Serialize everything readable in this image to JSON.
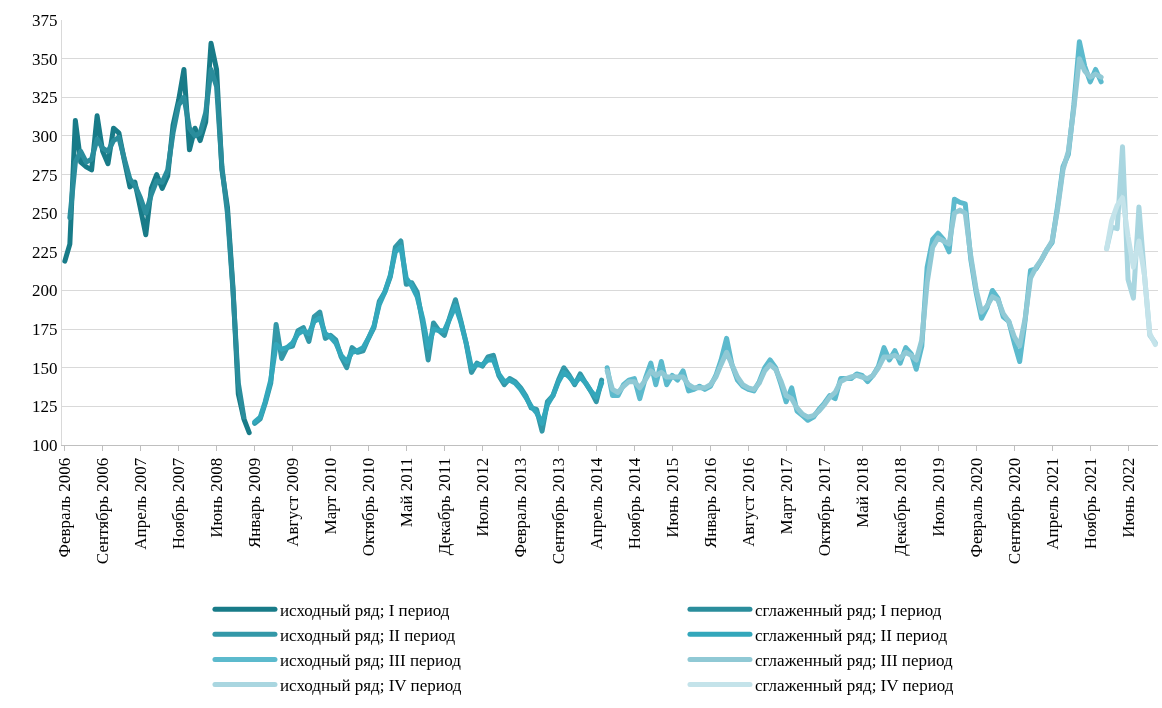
{
  "chart_data": {
    "type": "line",
    "xlim": [
      "2006-01-16",
      "2022-11-16"
    ],
    "ylim": [
      100,
      375
    ],
    "yticks": [
      100,
      125,
      150,
      175,
      200,
      225,
      250,
      275,
      300,
      325,
      350,
      375
    ],
    "xticks": [
      {
        "value": "2006-02",
        "label": "Февраль 2006"
      },
      {
        "value": "2006-09",
        "label": "Сентябрь 2006"
      },
      {
        "value": "2007-04",
        "label": "Апрель 2007"
      },
      {
        "value": "2007-11",
        "label": "Ноябрь 2007"
      },
      {
        "value": "2008-06",
        "label": "Июнь 2008"
      },
      {
        "value": "2009-01",
        "label": "Январь 2009"
      },
      {
        "value": "2009-08",
        "label": "Август 2009"
      },
      {
        "value": "2010-03",
        "label": "Март 2010"
      },
      {
        "value": "2010-10",
        "label": "Октябрь 2010"
      },
      {
        "value": "2011-05",
        "label": "Май 2011"
      },
      {
        "value": "2011-12",
        "label": "Декабрь 2011"
      },
      {
        "value": "2012-07",
        "label": "Июль 2012"
      },
      {
        "value": "2013-02",
        "label": "Февраль 2013"
      },
      {
        "value": "2013-09",
        "label": "Сентябрь 2013"
      },
      {
        "value": "2014-04",
        "label": "Апрель 2014"
      },
      {
        "value": "2014-11",
        "label": "Ноябрь 2014"
      },
      {
        "value": "2015-06",
        "label": "Июнь 2015"
      },
      {
        "value": "2016-01",
        "label": "Январь 2016"
      },
      {
        "value": "2016-08",
        "label": "Август 2016"
      },
      {
        "value": "2017-03",
        "label": "Март 2017"
      },
      {
        "value": "2017-10",
        "label": "Октябрь 2017"
      },
      {
        "value": "2018-05",
        "label": "Май 2018"
      },
      {
        "value": "2018-12",
        "label": "Декабрь 2018"
      },
      {
        "value": "2019-07",
        "label": "Июль 2019"
      },
      {
        "value": "2020-02",
        "label": "Февраль 2020"
      },
      {
        "value": "2020-09",
        "label": "Сентябрь 2020"
      },
      {
        "value": "2021-04",
        "label": "Апрель 2021"
      },
      {
        "value": "2021-11",
        "label": "Ноябрь 2021"
      },
      {
        "value": "2022-06",
        "label": "Июнь 2022"
      }
    ],
    "grid": "y",
    "legend": "bottom",
    "marker": "none",
    "line_style": "solid",
    "series": [
      {
        "name": "исходный ряд; I период",
        "color": "#187b88",
        "x": [
          "2006-02",
          "2006-03",
          "2006-04",
          "2006-05",
          "2006-06",
          "2006-07",
          "2006-08",
          "2006-09",
          "2006-10",
          "2006-11",
          "2006-12",
          "2007-01",
          "2007-02",
          "2007-03",
          "2007-04",
          "2007-05",
          "2007-06",
          "2007-07",
          "2007-08",
          "2007-09",
          "2007-10",
          "2007-11",
          "2007-12",
          "2008-01",
          "2008-02",
          "2008-03",
          "2008-04",
          "2008-05",
          "2008-06",
          "2008-07",
          "2008-08",
          "2008-09",
          "2008-10",
          "2008-11",
          "2008-12"
        ],
        "values": [
          219,
          230,
          310,
          283,
          280,
          278,
          313,
          290,
          282,
          305,
          302,
          284,
          267,
          270,
          253,
          236,
          266,
          275,
          266,
          274,
          307,
          323,
          343,
          291,
          305,
          297,
          309,
          360,
          343,
          278,
          254,
          202,
          133,
          117,
          108
        ]
      },
      {
        "name": "сглаженный ряд; I период",
        "color": "#2a8d9c",
        "x": [
          "2006-03",
          "2006-04",
          "2006-05",
          "2006-06",
          "2006-07",
          "2006-08",
          "2006-09",
          "2006-10",
          "2006-11",
          "2006-12",
          "2007-01",
          "2007-02",
          "2007-03",
          "2007-04",
          "2007-05",
          "2007-06",
          "2007-07",
          "2007-08",
          "2007-09",
          "2007-10",
          "2007-11",
          "2007-12",
          "2008-01",
          "2008-02",
          "2008-03",
          "2008-04",
          "2008-05",
          "2008-06",
          "2008-07",
          "2008-08",
          "2008-09",
          "2008-10",
          "2008-11"
        ],
        "values": [
          247,
          283,
          290,
          283,
          285,
          298,
          292,
          290,
          297,
          299,
          285,
          272,
          268,
          260,
          250,
          262,
          271,
          270,
          278,
          302,
          320,
          325,
          305,
          300,
          302,
          315,
          343,
          332,
          280,
          250,
          200,
          140,
          118
        ]
      },
      {
        "name": "исходный ряд; II период",
        "color": "#3398a8",
        "x": [
          "2009-01",
          "2009-02",
          "2009-03",
          "2009-04",
          "2009-05",
          "2009-06",
          "2009-07",
          "2009-08",
          "2009-09",
          "2009-10",
          "2009-11",
          "2009-12",
          "2010-01",
          "2010-02",
          "2010-03",
          "2010-04",
          "2010-05",
          "2010-06",
          "2010-07",
          "2010-08",
          "2010-09",
          "2010-10",
          "2010-11",
          "2010-12",
          "2011-01",
          "2011-02",
          "2011-03",
          "2011-04",
          "2011-05",
          "2011-06",
          "2011-07",
          "2011-08",
          "2011-09",
          "2011-10",
          "2011-11",
          "2011-12",
          "2012-01",
          "2012-02",
          "2012-03",
          "2012-04",
          "2012-05",
          "2012-06",
          "2012-07",
          "2012-08",
          "2012-09",
          "2012-10",
          "2012-11",
          "2012-12",
          "2013-01",
          "2013-02",
          "2013-03",
          "2013-04",
          "2013-05",
          "2013-06",
          "2013-07",
          "2013-08",
          "2013-09",
          "2013-10",
          "2013-11",
          "2013-12",
          "2014-01",
          "2014-02",
          "2014-03",
          "2014-04",
          "2014-05"
        ],
        "values": [
          114,
          117,
          127,
          140,
          178,
          156,
          163,
          164,
          174,
          176,
          167,
          183,
          186,
          169,
          171,
          168,
          157,
          150,
          163,
          160,
          161,
          169,
          176,
          193,
          199,
          209,
          228,
          232,
          204,
          205,
          199,
          179,
          155,
          179,
          174,
          171,
          183,
          194,
          181,
          166,
          147,
          153,
          151,
          157,
          158,
          145,
          139,
          143,
          141,
          137,
          132,
          124,
          123,
          109,
          128,
          132,
          142,
          150,
          145,
          139,
          146,
          140,
          135,
          128,
          142
        ]
      },
      {
        "name": "сглаженный ряд; II период",
        "color": "#33a7bb",
        "x": [
          "2009-01",
          "2009-02",
          "2009-03",
          "2009-04",
          "2009-05",
          "2009-06",
          "2009-07",
          "2009-08",
          "2009-09",
          "2009-10",
          "2009-11",
          "2009-12",
          "2010-01",
          "2010-02",
          "2010-03",
          "2010-04",
          "2010-05",
          "2010-06",
          "2010-07",
          "2010-08",
          "2010-09",
          "2010-10",
          "2010-11",
          "2010-12",
          "2011-01",
          "2011-02",
          "2011-03",
          "2011-04",
          "2011-05",
          "2011-06",
          "2011-07",
          "2011-08",
          "2011-09",
          "2011-10",
          "2011-11",
          "2011-12",
          "2012-01",
          "2012-02",
          "2012-03",
          "2012-04",
          "2012-05",
          "2012-06",
          "2012-07",
          "2012-08",
          "2012-09",
          "2012-10",
          "2012-11",
          "2012-12",
          "2013-01",
          "2013-02",
          "2013-03",
          "2013-04",
          "2013-05",
          "2013-06",
          "2013-07",
          "2013-08",
          "2013-09",
          "2013-10",
          "2013-11",
          "2013-12",
          "2014-01",
          "2014-02",
          "2014-03",
          "2014-04",
          "2014-05"
        ],
        "values": [
          115,
          118,
          128,
          142,
          165,
          162,
          163,
          166,
          172,
          174,
          172,
          180,
          182,
          172,
          170,
          166,
          158,
          154,
          160,
          161,
          163,
          169,
          177,
          191,
          199,
          210,
          225,
          228,
          208,
          203,
          196,
          182,
          163,
          175,
          174,
          174,
          182,
          190,
          180,
          166,
          150,
          152,
          152,
          155,
          155,
          146,
          141,
          142,
          140,
          136,
          131,
          125,
          121,
          114,
          126,
          132,
          141,
          147,
          144,
          140,
          144,
          140,
          135,
          131,
          140
        ]
      },
      {
        "name": "исходный ряд; III период",
        "color": "#5cbacd",
        "x": [
          "2014-06",
          "2014-07",
          "2014-08",
          "2014-09",
          "2014-10",
          "2014-11",
          "2014-12",
          "2015-01",
          "2015-02",
          "2015-03",
          "2015-04",
          "2015-05",
          "2015-06",
          "2015-07",
          "2015-08",
          "2015-09",
          "2015-10",
          "2015-11",
          "2015-12",
          "2016-01",
          "2016-02",
          "2016-03",
          "2016-04",
          "2016-05",
          "2016-06",
          "2016-07",
          "2016-08",
          "2016-09",
          "2016-10",
          "2016-11",
          "2016-12",
          "2017-01",
          "2017-02",
          "2017-03",
          "2017-04",
          "2017-05",
          "2017-06",
          "2017-07",
          "2017-08",
          "2017-09",
          "2017-10",
          "2017-11",
          "2017-12",
          "2018-01",
          "2018-02",
          "2018-03",
          "2018-04",
          "2018-05",
          "2018-06",
          "2018-07",
          "2018-08",
          "2018-09",
          "2018-10",
          "2018-11",
          "2018-12",
          "2019-01",
          "2019-02",
          "2019-03",
          "2019-04",
          "2019-05",
          "2019-06",
          "2019-07",
          "2019-08",
          "2019-09",
          "2019-10",
          "2019-11",
          "2019-12",
          "2020-01",
          "2020-02",
          "2020-03",
          "2020-04",
          "2020-05",
          "2020-06",
          "2020-07",
          "2020-08",
          "2020-09",
          "2020-10",
          "2020-11",
          "2020-12",
          "2021-01",
          "2021-02",
          "2021-03",
          "2021-04",
          "2021-05",
          "2021-06",
          "2021-07",
          "2021-08",
          "2021-09",
          "2021-10",
          "2021-11",
          "2021-12",
          "2022-01"
        ],
        "values": [
          150,
          132,
          132,
          139,
          142,
          143,
          130,
          143,
          153,
          139,
          154,
          139,
          145,
          142,
          148,
          135,
          136,
          138,
          136,
          138,
          145,
          155,
          169,
          152,
          142,
          138,
          136,
          135,
          141,
          150,
          155,
          150,
          139,
          128,
          137,
          122,
          119,
          116,
          118,
          123,
          127,
          132,
          130,
          143,
          143,
          143,
          146,
          145,
          141,
          145,
          151,
          163,
          155,
          161,
          153,
          163,
          159,
          149,
          164,
          215,
          233,
          237,
          233,
          225,
          259,
          257,
          256,
          220,
          198,
          182,
          189,
          200,
          195,
          183,
          180,
          166,
          154,
          181,
          213,
          214,
          220,
          226,
          231,
          254,
          280,
          288,
          320,
          361,
          345,
          335,
          343,
          335
        ]
      },
      {
        "name": "сглаженный ряд; III период",
        "color": "#90c9d5",
        "x": [
          "2014-06",
          "2014-07",
          "2014-08",
          "2014-09",
          "2014-10",
          "2014-11",
          "2014-12",
          "2015-01",
          "2015-02",
          "2015-03",
          "2015-04",
          "2015-05",
          "2015-06",
          "2015-07",
          "2015-08",
          "2015-09",
          "2015-10",
          "2015-11",
          "2015-12",
          "2016-01",
          "2016-02",
          "2016-03",
          "2016-04",
          "2016-05",
          "2016-06",
          "2016-07",
          "2016-08",
          "2016-09",
          "2016-10",
          "2016-11",
          "2016-12",
          "2017-01",
          "2017-02",
          "2017-03",
          "2017-04",
          "2017-05",
          "2017-06",
          "2017-07",
          "2017-08",
          "2017-09",
          "2017-10",
          "2017-11",
          "2017-12",
          "2018-01",
          "2018-02",
          "2018-03",
          "2018-04",
          "2018-05",
          "2018-06",
          "2018-07",
          "2018-08",
          "2018-09",
          "2018-10",
          "2018-11",
          "2018-12",
          "2019-01",
          "2019-02",
          "2019-03",
          "2019-04",
          "2019-05",
          "2019-06",
          "2019-07",
          "2019-08",
          "2019-09",
          "2019-10",
          "2019-11",
          "2019-12",
          "2020-01",
          "2020-02",
          "2020-03",
          "2020-04",
          "2020-05",
          "2020-06",
          "2020-07",
          "2020-08",
          "2020-09",
          "2020-10",
          "2020-11",
          "2020-12",
          "2021-01",
          "2021-02",
          "2021-03",
          "2021-04",
          "2021-05",
          "2021-06",
          "2021-07",
          "2021-08",
          "2021-09",
          "2021-10",
          "2021-11",
          "2021-12",
          "2022-01"
        ],
        "values": [
          148,
          136,
          134,
          138,
          141,
          141,
          137,
          142,
          148,
          145,
          147,
          144,
          144,
          144,
          144,
          139,
          137,
          137,
          137,
          139,
          144,
          152,
          160,
          152,
          144,
          139,
          137,
          136,
          140,
          148,
          152,
          149,
          141,
          132,
          130,
          124,
          120,
          118,
          119,
          122,
          126,
          131,
          134,
          141,
          143,
          144,
          145,
          144,
          143,
          145,
          150,
          157,
          157,
          158,
          156,
          160,
          158,
          155,
          168,
          205,
          228,
          234,
          232,
          230,
          250,
          252,
          250,
          222,
          200,
          186,
          190,
          196,
          194,
          185,
          180,
          170,
          164,
          182,
          208,
          215,
          220,
          226,
          232,
          252,
          278,
          290,
          318,
          350,
          342,
          338,
          340,
          338
        ]
      },
      {
        "name": "исходный ряд; IV период",
        "color": "#a9d6e0",
        "x": [
          "2022-02",
          "2022-03",
          "2022-04",
          "2022-05",
          "2022-06",
          "2022-07",
          "2022-08",
          "2022-09",
          "2022-10",
          "2022-11"
        ],
        "values": [
          227,
          241,
          240,
          293,
          207,
          195,
          254,
          210,
          171,
          166
        ]
      },
      {
        "name": "сглаженный ряд; IV период",
        "color": "#c4e3ea",
        "x": [
          "2022-02",
          "2022-03",
          "2022-04",
          "2022-05",
          "2022-06",
          "2022-07",
          "2022-08",
          "2022-09",
          "2022-10",
          "2022-11"
        ],
        "values": [
          227,
          245,
          255,
          260,
          235,
          215,
          232,
          210,
          172,
          165
        ]
      }
    ]
  }
}
